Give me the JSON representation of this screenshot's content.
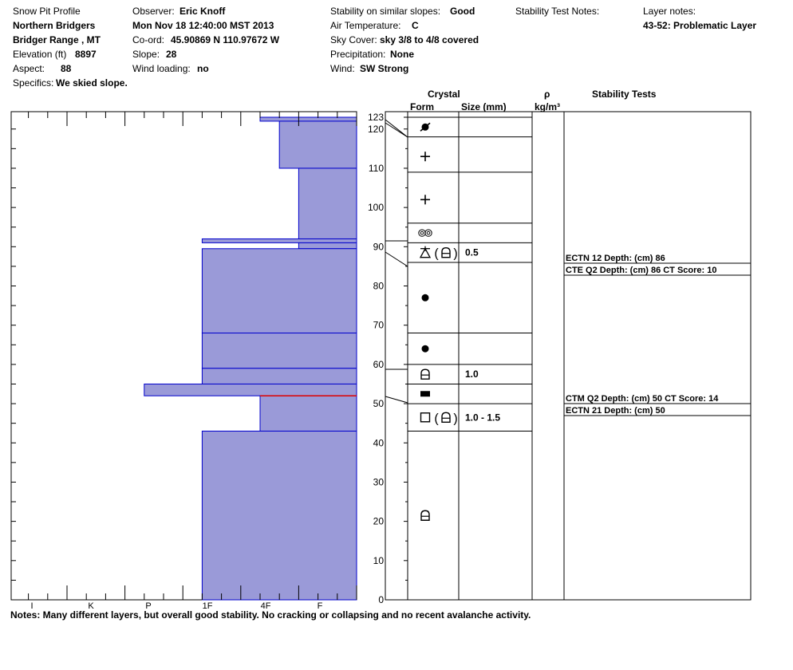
{
  "header": {
    "title": "Snow Pit Profile",
    "location": "Northern Bridgers",
    "range": "Bridger Range , MT",
    "elevation_label": "Elevation (ft)",
    "elevation": "8897",
    "aspect_label": "Aspect:",
    "aspect": "88",
    "specifics_label": "Specifics:",
    "specifics": "We skied slope.",
    "observer_label": "Observer:",
    "observer": "Eric Knoff",
    "datetime": "Mon Nov 18 12:40:00 MST 2013",
    "coord_label": "Co-ord:",
    "coord": "45.90869 N 110.97672 W",
    "slope_label": "Slope:",
    "slope": "28",
    "wind_loading_label": "Wind loading:",
    "wind_loading": "no",
    "stability_label": "Stability on similar slopes:",
    "stability": "Good",
    "air_temp_label": "Air Temperature:",
    "air_temp": "C",
    "sky_label": "Sky Cover:",
    "sky": "sky 3/8 to 4/8 covered",
    "precip_label": "Precipitation:",
    "precip": "None",
    "wind_label": "Wind:",
    "wind": "SW Strong",
    "stab_notes_label": "Stability Test Notes:",
    "layer_notes_label": "Layer notes:",
    "layer_notes": "43-52: Problematic Layer"
  },
  "columns": {
    "crystal": "Crystal",
    "form": "Form",
    "size": "Size (mm)",
    "rho": "ρ",
    "density_unit": "kg/m³",
    "stability_tests": "Stability Tests"
  },
  "notes": "Notes:  Many different layers, but overall good stability. No cracking or collapsing and no recent avalanche activity.",
  "chart_data": {
    "type": "snow_pit_profile",
    "depth_unit": "cm",
    "depth_range": [
      0,
      123
    ],
    "depth_ticks": [
      0,
      10,
      20,
      30,
      40,
      50,
      60,
      70,
      80,
      90,
      100,
      110,
      120,
      123
    ],
    "hardness_scale": [
      "F-",
      "F",
      "F+",
      "4F-",
      "4F",
      "4F+",
      "1F-",
      "1F",
      "1F+",
      "P-",
      "P",
      "P+",
      "K-",
      "K",
      "K+",
      "I-",
      "I"
    ],
    "hardness_labels": [
      "I",
      "K",
      "P",
      "1F",
      "4F",
      "F"
    ],
    "hardness_layers": [
      {
        "top": 123,
        "bottom": 122,
        "hardness_steps": 5
      },
      {
        "top": 122,
        "bottom": 110,
        "hardness_steps": 4
      },
      {
        "top": 110,
        "bottom": 92,
        "hardness_steps": 3
      },
      {
        "top": 92,
        "bottom": 91,
        "hardness_steps": 8
      },
      {
        "top": 91,
        "bottom": 89.5,
        "hardness_steps": 3
      },
      {
        "top": 89.5,
        "bottom": 68,
        "hardness_steps": 8
      },
      {
        "top": 68,
        "bottom": 59,
        "hardness_steps": 8
      },
      {
        "top": 59,
        "bottom": 55,
        "hardness_steps": 8
      },
      {
        "top": 55,
        "bottom": 52,
        "hardness_steps": 11
      },
      {
        "top": 52,
        "bottom": 43,
        "hardness_steps": 5
      },
      {
        "top": 43,
        "bottom": 0,
        "hardness_steps": 8
      }
    ],
    "problem_boundary_depth": 52,
    "grain_boundaries": [
      123,
      118,
      109,
      96,
      91,
      86,
      68,
      60,
      55,
      50,
      43
    ],
    "grain_layers": [
      {
        "mid": 120.5,
        "forms": [
          "decomposing-fragments"
        ],
        "size": ""
      },
      {
        "mid": 113,
        "forms": [
          "precipitation"
        ],
        "size": ""
      },
      {
        "mid": 102,
        "forms": [
          "precipitation"
        ],
        "size": ""
      },
      {
        "mid": 93.5,
        "forms": [
          "rounded-melt"
        ],
        "size": ""
      },
      {
        "mid": 88.5,
        "forms": [
          "surface-hoar",
          "faceted-rounded"
        ],
        "size": "0.5"
      },
      {
        "mid": 77,
        "forms": [
          "rounded"
        ],
        "size": ""
      },
      {
        "mid": 64,
        "forms": [
          "rounded"
        ],
        "size": ""
      },
      {
        "mid": 57.5,
        "forms": [
          "faceted-rounded"
        ],
        "size": "1.0"
      },
      {
        "mid": 52.5,
        "forms": [
          "ice-crust"
        ],
        "size": ""
      },
      {
        "mid": 46.5,
        "forms": [
          "faceted",
          "faceted-rounded"
        ],
        "size": "1.0 - 1.5"
      },
      {
        "mid": 21.5,
        "forms": [
          "faceted-rounded"
        ],
        "size": ""
      }
    ],
    "stability_tests": [
      {
        "depth": 86,
        "text": "ECTN 12   Depth: (cm) 86"
      },
      {
        "depth": 86,
        "text": "CTE Q2 Depth: (cm) 86 CT Score: 10"
      },
      {
        "depth": 50,
        "text": "CTM Q2 Depth: (cm) 50 CT Score: 14"
      },
      {
        "depth": 50,
        "text": "ECTN 21   Depth: (cm) 50"
      }
    ],
    "colors": {
      "fill": "#9a9ad8",
      "edge": "#0000cc",
      "problem": "#dd0000"
    }
  }
}
